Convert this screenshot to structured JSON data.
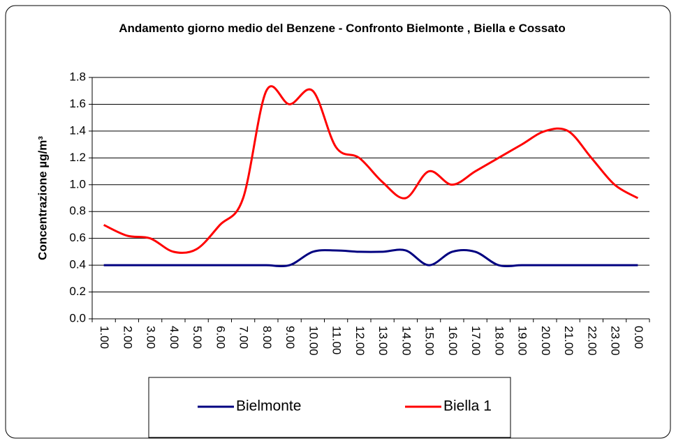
{
  "chart_data": {
    "type": "line",
    "title": "Andamento giorno medio del Benzene - Confronto Bielmonte , Biella e Cossato",
    "y_label": "Concentrazione µg/m³",
    "categories": [
      "1.00",
      "2.00",
      "3.00",
      "4.00",
      "5.00",
      "6.00",
      "7.00",
      "8.00",
      "9.00",
      "10.00",
      "11.00",
      "12.00",
      "13.00",
      "14.00",
      "15.00",
      "16.00",
      "17.00",
      "18.00",
      "19.00",
      "20.00",
      "21.00",
      "22.00",
      "23.00",
      "0.00"
    ],
    "series": [
      {
        "name": "Bielmonte",
        "color": "#000080",
        "values": [
          0.4,
          0.4,
          0.4,
          0.4,
          0.4,
          0.4,
          0.4,
          0.4,
          0.4,
          0.5,
          0.51,
          0.5,
          0.5,
          0.51,
          0.4,
          0.5,
          0.5,
          0.4,
          0.4,
          0.4,
          0.4,
          0.4,
          0.4,
          0.4
        ]
      },
      {
        "name": "Biella 1",
        "color": "#ff0000",
        "values": [
          0.7,
          0.62,
          0.6,
          0.5,
          0.52,
          0.7,
          0.9,
          1.7,
          1.6,
          1.7,
          1.28,
          1.2,
          1.02,
          0.9,
          1.1,
          1.0,
          1.1,
          1.2,
          1.3,
          1.4,
          1.4,
          1.2,
          1.0,
          0.9
        ]
      }
    ],
    "ylim": [
      0,
      1.8
    ],
    "yticks": [
      {
        "value": 0,
        "label": "0.0"
      },
      0.2,
      0.4,
      0.6,
      0.8,
      {
        "value": 1,
        "label": "1.0"
      },
      1.2,
      1.4,
      1.6,
      1.8
    ],
    "grid": true,
    "legend": "bottom"
  }
}
